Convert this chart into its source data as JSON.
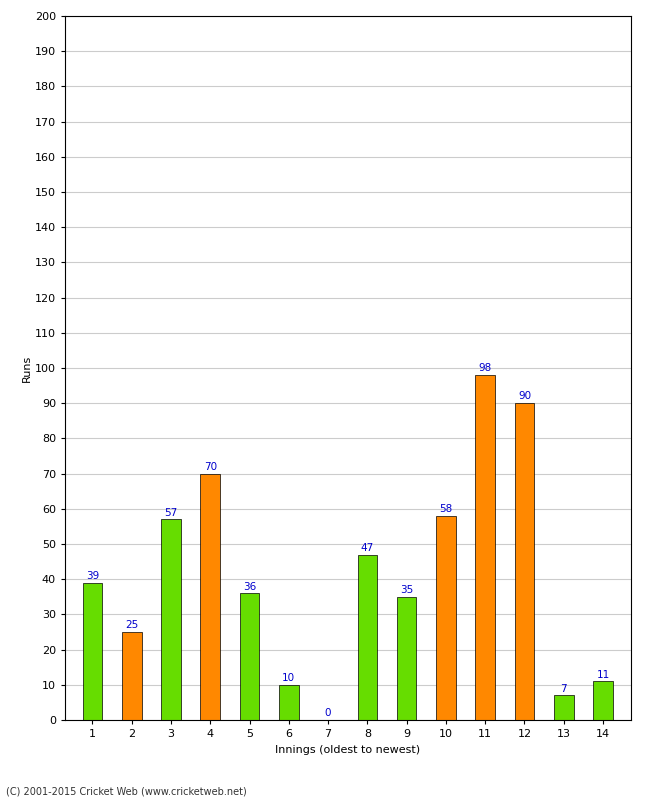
{
  "innings": [
    1,
    2,
    3,
    4,
    5,
    6,
    7,
    8,
    9,
    10,
    11,
    12,
    13,
    14
  ],
  "values": [
    39,
    25,
    57,
    70,
    36,
    10,
    0,
    47,
    35,
    58,
    98,
    90,
    7,
    11
  ],
  "colors": [
    "#66dd00",
    "#ff8800",
    "#66dd00",
    "#ff8800",
    "#66dd00",
    "#66dd00",
    "#ff8800",
    "#66dd00",
    "#66dd00",
    "#ff8800",
    "#ff8800",
    "#ff8800",
    "#66dd00",
    "#66dd00"
  ],
  "bar_edge_color": "#000000",
  "ylabel": "Runs",
  "xlabel": "Innings (oldest to newest)",
  "ylim": [
    0,
    200
  ],
  "yticks": [
    0,
    10,
    20,
    30,
    40,
    50,
    60,
    70,
    80,
    90,
    100,
    110,
    120,
    130,
    140,
    150,
    160,
    170,
    180,
    190,
    200
  ],
  "label_color": "#0000cc",
  "label_fontsize": 7.5,
  "background_color": "#ffffff",
  "grid_color": "#cccccc",
  "footer": "(C) 2001-2015 Cricket Web (www.cricketweb.net)",
  "bar_width": 0.5,
  "figsize": [
    6.5,
    8.0
  ],
  "dpi": 100
}
